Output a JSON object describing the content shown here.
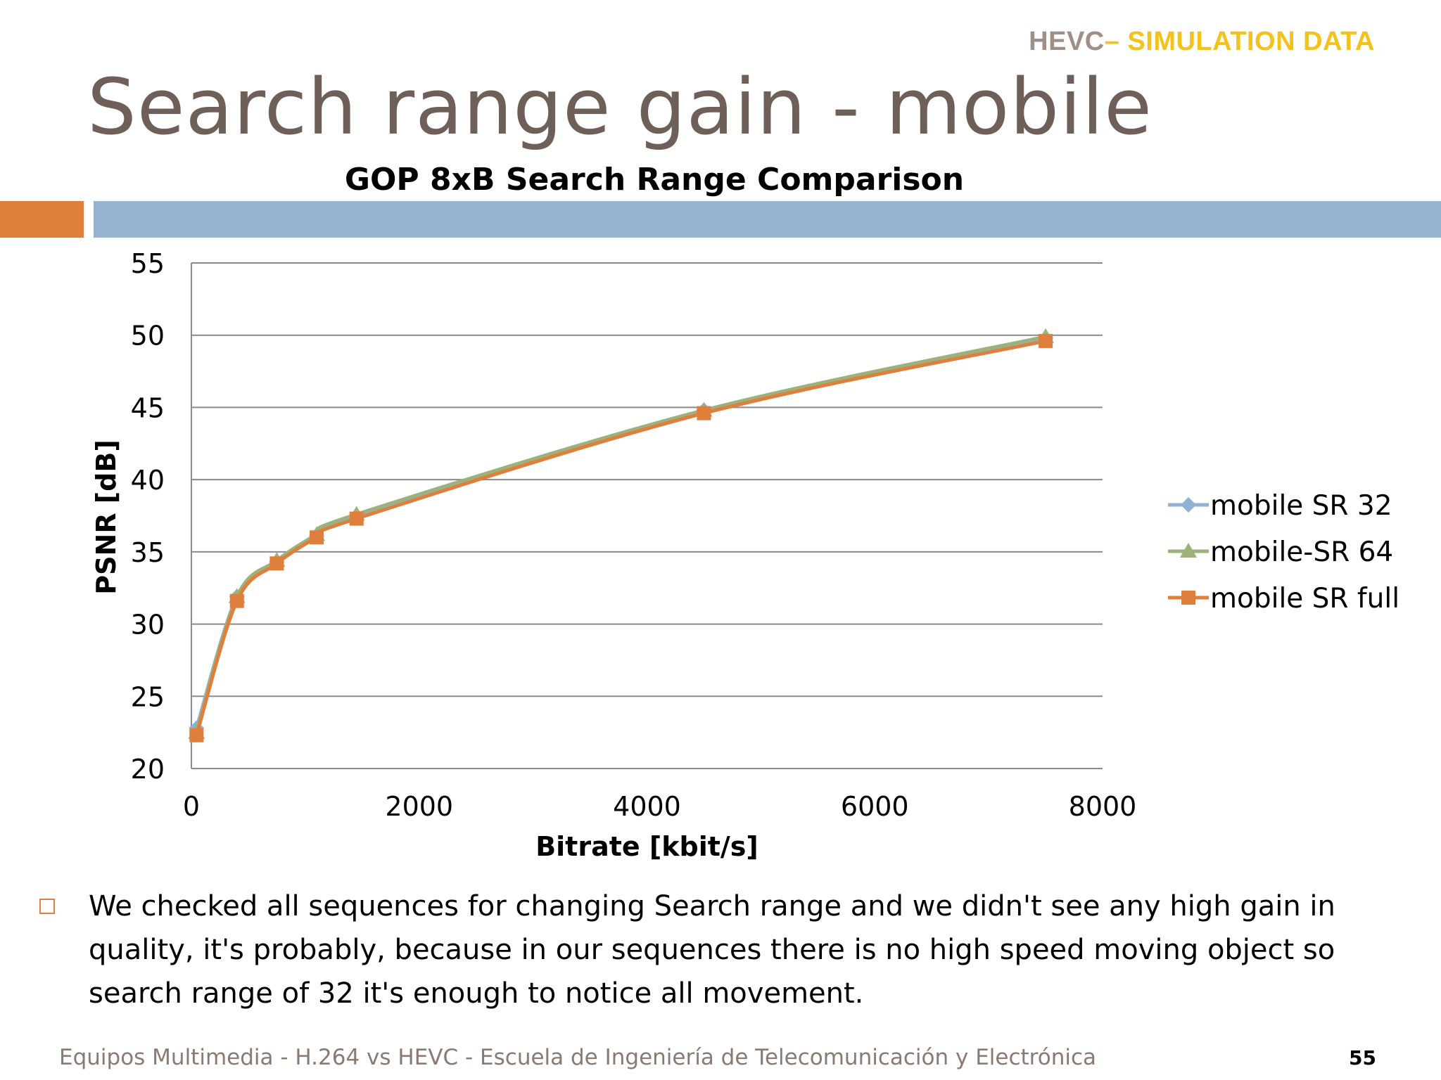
{
  "header": {
    "tag_part1": "HEVC",
    "tag_part2": "– SIMULATION DATA"
  },
  "slide": {
    "title": "Search range gain - mobile",
    "bullet_text": "We checked all sequences for changing Search range and we didn't see any high gain in quality, it's probably, because in our sequences there is no high speed moving object so search range of 32 it's enough to notice all movement.",
    "footer": "Equipos Multimedia - H.264 vs HEVC - Escuela de Ingeniería de Telecomunicación y Electrónica",
    "page_number": "55"
  },
  "colors": {
    "accent_orange": "#e07e3c",
    "accent_blue": "#93b3d1",
    "header_gold": "#f3c21b",
    "title_brown": "#6e5f58"
  },
  "chart_data": {
    "type": "line",
    "title": "GOP 8xB Search Range Comparison",
    "xlabel": "Bitrate [kbit/s]",
    "ylabel": "PSNR [dB]",
    "xlim": [
      0,
      8000
    ],
    "ylim": [
      20,
      55
    ],
    "xticks": [
      0,
      2000,
      4000,
      6000,
      8000
    ],
    "yticks": [
      20,
      25,
      30,
      35,
      40,
      45,
      50,
      55
    ],
    "grid": "horizontal",
    "legend_position": "right",
    "series": [
      {
        "name": "mobile SR 32",
        "color": "#8fb1d3",
        "marker": "diamond",
        "x": [
          45,
          400,
          750,
          1100,
          1450,
          4500,
          7500
        ],
        "y": [
          22.8,
          31.9,
          34.3,
          36.1,
          37.5,
          44.8,
          49.8
        ]
      },
      {
        "name": "mobile-SR 64",
        "color": "#9cb17b",
        "marker": "triangle",
        "x": [
          45,
          400,
          750,
          1100,
          1450,
          4500,
          7500
        ],
        "y": [
          22.5,
          31.9,
          34.4,
          36.2,
          37.6,
          44.8,
          49.9
        ]
      },
      {
        "name": "mobile SR full",
        "color": "#e07e3c",
        "marker": "square",
        "x": [
          45,
          400,
          750,
          1100,
          1450,
          4500,
          7500
        ],
        "y": [
          22.3,
          31.6,
          34.2,
          36.0,
          37.3,
          44.6,
          49.6
        ]
      }
    ]
  }
}
